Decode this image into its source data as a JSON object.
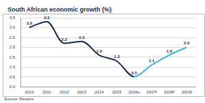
{
  "chart_data": {
    "type": "line",
    "title": "South African economic growth (%)",
    "source": "Source: Reuters",
    "categories": [
      "2010",
      "2011",
      "2012",
      "2013",
      "2014",
      "2015",
      "2016e",
      "2017f",
      "2018f",
      "2019f"
    ],
    "values": [
      3.0,
      3.3,
      2.2,
      2.3,
      1.6,
      1.3,
      0.5,
      1.1,
      1.6,
      2.0
    ],
    "value_labels": [
      "3.0",
      "3.3",
      "2.2",
      "2.3",
      "1.6",
      "1.3",
      "0.5",
      "1.1",
      "1.6",
      "2.0"
    ],
    "colors": [
      "#1b2b4b",
      "#1b2b4b",
      "#1b2b4b",
      "#1b2b4b",
      "#1b2b4b",
      "#1b2b4b",
      "#1b2b4b",
      "#3aaee0",
      "#3aaee0",
      "#3aaee0"
    ],
    "ylim": [
      0,
      3.5
    ],
    "yticks": [
      {
        "value": 0,
        "label": "0.0"
      },
      0.5,
      {
        "value": 1,
        "label": "1.0"
      },
      1.5,
      {
        "value": 2,
        "label": "2.0"
      },
      2.5,
      {
        "value": 3,
        "label": "3.0"
      },
      3.5
    ],
    "grid": true,
    "data_labels": true
  }
}
